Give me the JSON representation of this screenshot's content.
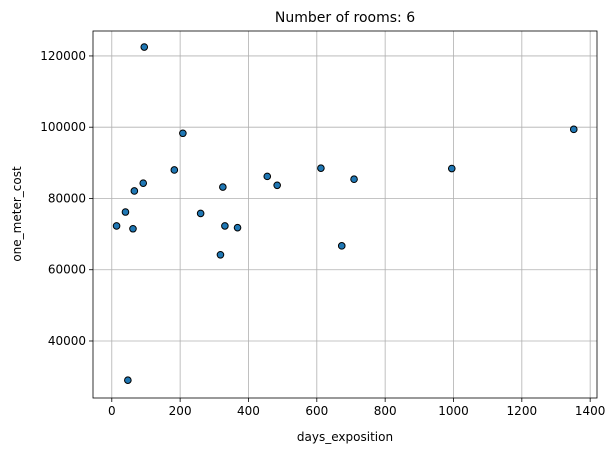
{
  "chart_data": {
    "type": "scatter",
    "title": "Number of rooms: 6",
    "xlabel": "days_exposition",
    "ylabel": "one_meter_cost",
    "xlim": [
      -55,
      1420
    ],
    "ylim": [
      24000,
      127000
    ],
    "xticks": [
      0,
      200,
      400,
      600,
      800,
      1000,
      1200,
      1400
    ],
    "yticks": [
      40000,
      60000,
      80000,
      100000,
      120000
    ],
    "grid": true,
    "marker_color": "#1f77b4",
    "marker_edge_color": "#000000",
    "points": [
      {
        "x": 14,
        "y": 72300
      },
      {
        "x": 40,
        "y": 76200
      },
      {
        "x": 47,
        "y": 29000
      },
      {
        "x": 62,
        "y": 71500
      },
      {
        "x": 66,
        "y": 82100
      },
      {
        "x": 92,
        "y": 84300
      },
      {
        "x": 95,
        "y": 122500
      },
      {
        "x": 183,
        "y": 88000
      },
      {
        "x": 208,
        "y": 98300
      },
      {
        "x": 260,
        "y": 75800
      },
      {
        "x": 318,
        "y": 64200
      },
      {
        "x": 325,
        "y": 83200
      },
      {
        "x": 331,
        "y": 72300
      },
      {
        "x": 368,
        "y": 71800
      },
      {
        "x": 455,
        "y": 86200
      },
      {
        "x": 484,
        "y": 83700
      },
      {
        "x": 612,
        "y": 88500
      },
      {
        "x": 673,
        "y": 66700
      },
      {
        "x": 709,
        "y": 85400
      },
      {
        "x": 995,
        "y": 88400
      },
      {
        "x": 1352,
        "y": 99400
      }
    ]
  }
}
